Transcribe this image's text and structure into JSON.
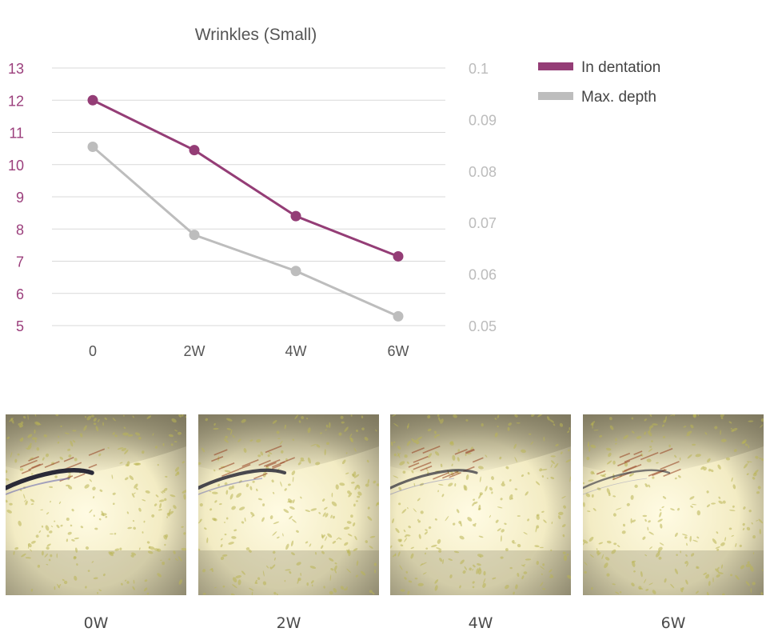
{
  "chart_data": {
    "type": "line",
    "title": "Wrinkles (Small)",
    "categories": [
      "0",
      "2W",
      "4W",
      "6W"
    ],
    "y_left": {
      "ylim": [
        5,
        13
      ],
      "ticks": [
        "5",
        "6",
        "7",
        "8",
        "9",
        "10",
        "11",
        "12",
        "13"
      ],
      "color": "#9b3f7c"
    },
    "y_right": {
      "ylim": [
        0.05,
        0.1
      ],
      "ticks": [
        "0.05",
        "0.06",
        "0.07",
        "0.08",
        "0.09",
        "0.1"
      ],
      "color": "#bcbcbc"
    },
    "grid": true,
    "legend_position": "top-right",
    "series": [
      {
        "name": "In dentation",
        "axis": "left",
        "color": "#943d76",
        "values": [
          12.0,
          10.45,
          8.4,
          7.15
        ]
      },
      {
        "name": "Max. depth",
        "axis": "right",
        "color": "#bdbdbd",
        "values": [
          0.0847,
          0.0676,
          0.0606,
          0.0518
        ]
      }
    ]
  },
  "photos": [
    {
      "label": "0W",
      "crease": "strong"
    },
    {
      "label": "2W",
      "crease": "medium"
    },
    {
      "label": "4W",
      "crease": "light"
    },
    {
      "label": "6W",
      "crease": "faint"
    }
  ],
  "colors": {
    "skin_light": "#fffbe3",
    "skin_mid": "#f3ecc4",
    "skin_shadow": "#8e8870",
    "speckle": "#b9b454",
    "crease": "#2a2a38"
  }
}
